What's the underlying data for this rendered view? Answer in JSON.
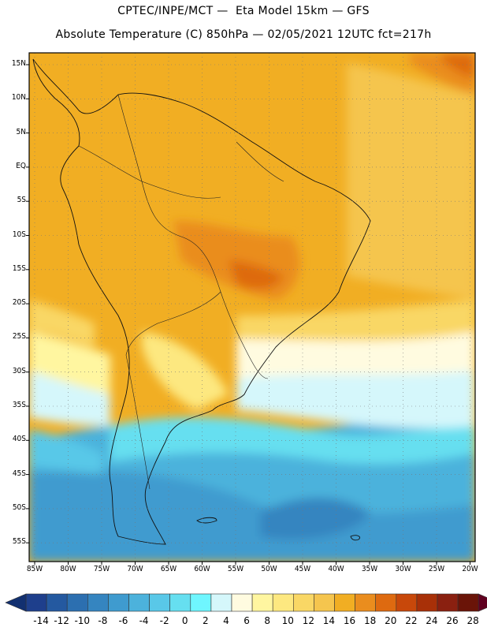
{
  "title_line1": "CPTEC/INPE/MCT —  Eta Model 15km — GFS",
  "title_line2": "Absolute Temperature (C) 850hPa — 02/05/2021 12UTC fct=217h",
  "lat_labels": [
    "15N",
    "10N",
    "5N",
    "EQ",
    "5S",
    "10S",
    "15S",
    "20S",
    "25S",
    "30S",
    "35S",
    "40S",
    "45S",
    "50S",
    "55S"
  ],
  "lon_labels": [
    "85W",
    "80W",
    "75W",
    "70W",
    "65W",
    "60W",
    "55W",
    "50W",
    "45W",
    "40W",
    "35W",
    "30W",
    "25W",
    "20W"
  ],
  "colorbar": {
    "labels": [
      "-14",
      "-12",
      "-10",
      "-8",
      "-6",
      "-4",
      "-2",
      "0",
      "2",
      "4",
      "6",
      "8",
      "10",
      "12",
      "14",
      "16",
      "18",
      "20",
      "22",
      "24",
      "26",
      "28"
    ],
    "colors": [
      "#1e3f8c",
      "#2459a0",
      "#2c6fb0",
      "#3585c0",
      "#3f9bcf",
      "#4cb2dc",
      "#59c8e8",
      "#66dff0",
      "#6ff6ff",
      "#d5f7fb",
      "#fffbe0",
      "#fff6a0",
      "#fde880",
      "#f9d765",
      "#f5c54e",
      "#f1ae23",
      "#ea8d1e",
      "#de6a10",
      "#c8480a",
      "#a83008",
      "#8a2010",
      "#6a1408"
    ],
    "under": "#123070",
    "over": "#600020"
  }
}
